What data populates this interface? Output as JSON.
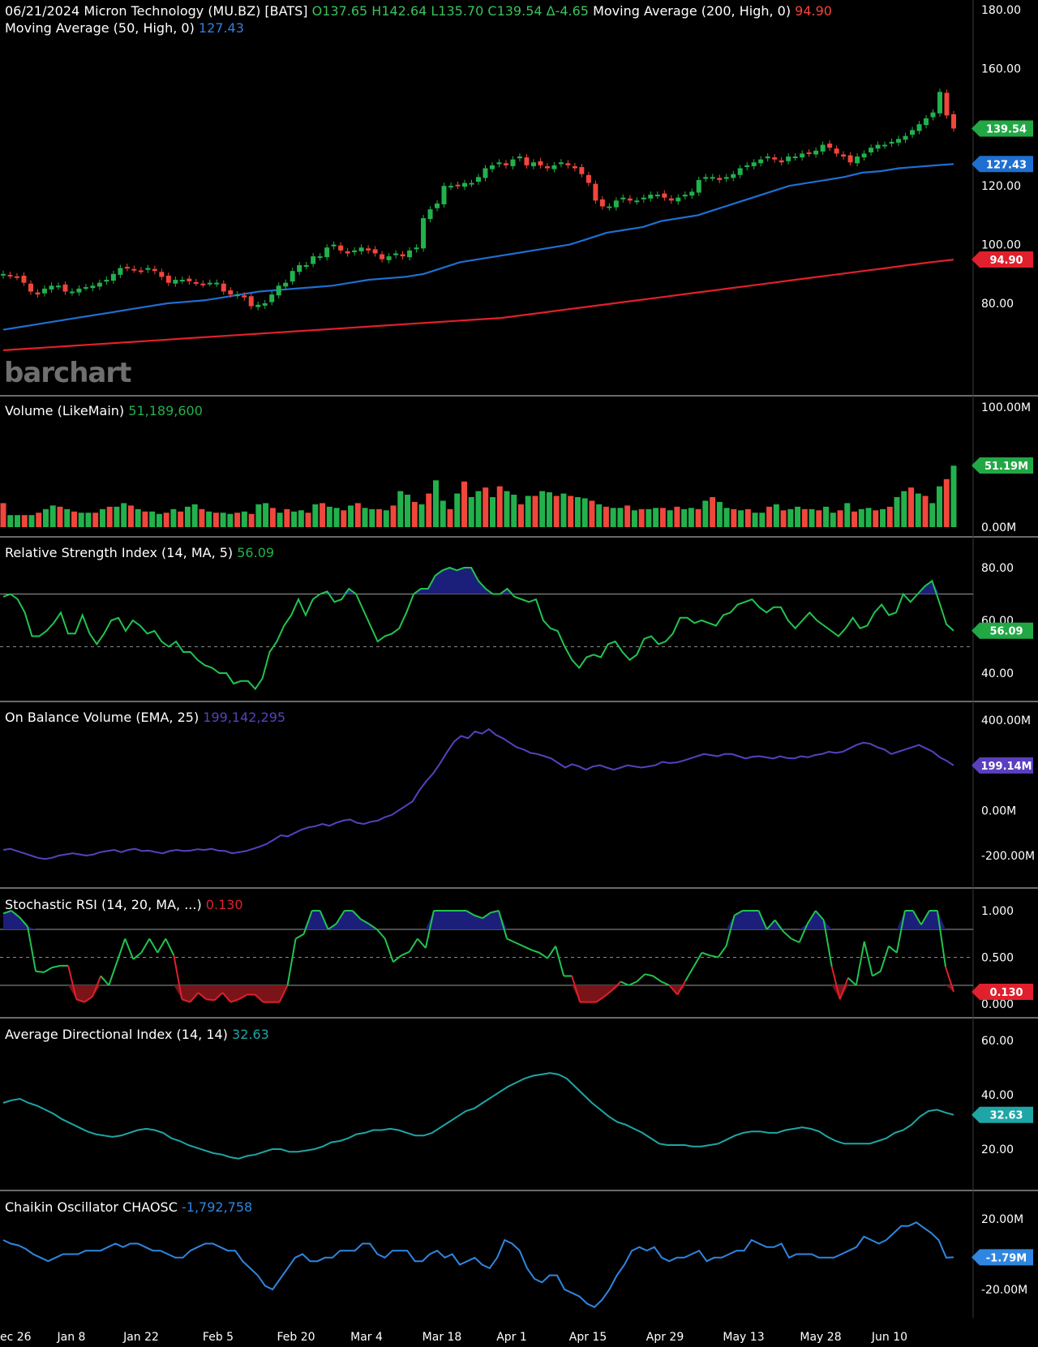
{
  "header": {
    "date": "06/21/2024",
    "symbol": "Micron Technology (MU.BZ) [BATS]",
    "ohlc": {
      "o": "O137.65",
      "h": "H142.64",
      "l": "L135.70",
      "c": "C139.54",
      "chg": "Δ-4.65"
    },
    "ma200_label": "Moving Average  (200, High, 0)",
    "ma200_value": "94.90",
    "ma50_label": "Moving Average  (50, High, 0)",
    "ma50_value": "127.43"
  },
  "watermark": "barchart",
  "colors": {
    "up": "#22b14c",
    "down": "#f0463c",
    "ma50": "#1f6fd1",
    "ma200": "#e0202c",
    "rsi": "#21c44f",
    "obv": "#5a3fc0",
    "adx": "#1ea6a6",
    "chaikin": "#2f86e0",
    "fill_ob": "#1c1f7a",
    "fill_os": "#7a1418"
  },
  "x_axis": [
    "ec 26",
    "Jan 8",
    "Jan 22",
    "Feb 5",
    "Feb 20",
    "Mar 4",
    "Mar 18",
    "Apr 1",
    "Apr 15",
    "Apr 29",
    "May 13",
    "May 28",
    "Jun 10"
  ],
  "panels": {
    "price": {
      "ticks": [
        "180.00",
        "160.00",
        "120.00",
        "100.00",
        "80.00"
      ],
      "badges": [
        "139.54",
        "127.43",
        "94.90"
      ]
    },
    "volume": {
      "title": "Volume  (LikeMain)",
      "value": "51,189,600",
      "ticks": [
        "100.00M",
        "0.00M"
      ],
      "badge": "51.19M"
    },
    "rsi": {
      "title": "Relative Strength Index  (14, MA, 5)",
      "value": "56.09",
      "ticks": [
        "80.00",
        "60.00",
        "40.00"
      ],
      "badge": "56.09"
    },
    "obv": {
      "title": "On Balance Volume  (EMA, 25)",
      "value": "199,142,295",
      "ticks": [
        "400.00M",
        "0.00M",
        "-200.00M"
      ],
      "badge": "199.14M"
    },
    "stoch": {
      "title": "Stochastic RSI  (14, 20, MA, ...)",
      "value": "0.130",
      "ticks": [
        "1.000",
        "0.500",
        "0.000"
      ],
      "badge": "0.130"
    },
    "adx": {
      "title": "Average Directional Index  (14, 14)",
      "value": "32.63",
      "ticks": [
        "60.00",
        "40.00",
        "20.00"
      ],
      "badge": "32.63"
    },
    "chaikin": {
      "title": "Chaikin Oscillator CHAOSC",
      "value": "-1,792,758",
      "ticks": [
        "20.00M",
        "-20.00M"
      ],
      "badge": "-1.79M"
    }
  },
  "chart_data": [
    {
      "type": "candlestick",
      "title": "06/21/2024 Micron Technology (MU.BZ) [BATS]",
      "x_labels": [
        "ec 26",
        "Jan 8",
        "Jan 22",
        "Feb 5",
        "Feb 20",
        "Mar 4",
        "Mar 18",
        "Apr 1",
        "Apr 15",
        "Apr 29",
        "May 13",
        "May 28",
        "Jun 10"
      ],
      "ylim": [
        60,
        180
      ],
      "close": [
        90,
        89.5,
        89,
        87,
        84,
        83,
        85,
        86,
        86,
        84,
        84,
        85,
        85.5,
        86,
        87,
        88,
        90,
        92,
        92,
        91.5,
        91,
        92,
        91,
        89,
        87,
        88,
        88,
        87.5,
        87,
        86.5,
        87,
        87,
        84,
        83,
        83,
        82,
        79,
        79.5,
        80,
        83,
        86,
        87,
        91,
        93,
        93,
        96,
        96,
        99,
        100,
        98,
        97,
        98,
        99,
        98,
        97,
        95,
        96,
        97,
        96,
        98,
        99,
        109,
        112,
        114,
        120,
        120,
        120,
        121,
        121,
        123,
        126,
        127,
        128,
        127,
        129,
        130,
        127,
        128,
        127,
        126,
        127,
        128,
        127,
        126,
        124,
        121,
        115,
        113,
        113,
        115,
        116,
        115,
        115,
        116,
        117,
        117,
        116,
        115,
        116,
        117,
        118,
        122,
        123,
        123,
        122,
        123,
        124,
        126,
        127,
        128,
        129,
        130,
        129,
        128,
        130,
        130,
        131,
        131,
        132,
        134,
        133,
        131,
        130,
        128,
        130,
        131,
        133,
        134,
        134,
        135,
        136,
        137,
        139,
        141,
        143,
        145,
        152,
        144,
        139.54
      ],
      "ma50": [
        71,
        72,
        73,
        74,
        75,
        76,
        77,
        78,
        79,
        80,
        80.5,
        81,
        82,
        83,
        84,
        84.5,
        85,
        85.5,
        86,
        87,
        88,
        88.5,
        89,
        90,
        92,
        94,
        95,
        96,
        97,
        98,
        99,
        100,
        102,
        104,
        105,
        106,
        108,
        109,
        110,
        112,
        114,
        116,
        118,
        120,
        121,
        122,
        123,
        124.5,
        125,
        126,
        126.5,
        127,
        127.43
      ],
      "ma200": [
        64,
        64.5,
        65,
        65.5,
        66,
        66.5,
        67,
        67.5,
        68,
        68.5,
        69,
        69.5,
        70,
        70.5,
        71,
        71.5,
        72,
        72.5,
        73,
        73.5,
        74,
        74.5,
        75,
        76,
        77,
        78,
        79,
        80,
        81,
        82,
        83,
        84,
        85,
        86,
        87,
        88,
        89,
        90,
        91,
        92,
        93,
        94,
        94.9
      ]
    },
    {
      "type": "bar",
      "title": "Volume  (LikeMain)",
      "ylim": [
        0,
        100
      ],
      "unit": "M",
      "values": [
        20,
        10,
        10,
        10,
        10,
        12,
        15,
        18,
        17,
        15,
        13,
        12,
        12,
        12,
        15,
        17,
        17,
        20,
        18,
        15,
        13,
        13,
        11,
        12,
        15,
        13,
        17,
        19,
        15,
        13,
        12,
        12,
        11,
        12,
        13,
        11,
        19,
        20,
        16,
        12,
        15,
        13,
        14,
        12,
        19,
        20,
        17,
        16,
        14,
        18,
        20,
        16,
        15,
        15,
        14,
        18,
        30,
        27,
        21,
        19,
        28,
        39,
        22,
        15,
        28,
        38,
        25,
        30,
        33,
        25,
        34,
        30,
        27,
        19,
        26,
        26,
        30,
        29,
        26,
        28,
        26,
        25,
        24,
        22,
        19,
        17,
        16,
        16,
        18,
        14,
        15,
        15,
        16,
        16,
        14,
        17,
        15,
        16,
        15,
        22,
        25,
        21,
        16,
        15,
        14,
        15,
        12,
        12,
        17,
        19,
        14,
        15,
        17,
        15,
        15,
        14,
        17,
        12,
        14,
        20,
        13,
        15,
        16,
        14,
        15,
        17,
        25,
        30,
        33,
        28,
        26,
        20,
        34,
        40,
        51.19
      ],
      "colors": "up/down per candle"
    },
    {
      "type": "line",
      "title": "Relative Strength Index  (14, MA, 5)",
      "ylim": [
        30,
        90
      ],
      "values": [
        69,
        70,
        68,
        63,
        54,
        54,
        56,
        59,
        63,
        55,
        55,
        62,
        55,
        51,
        55,
        60,
        61,
        56,
        60,
        58,
        55,
        56,
        52,
        50,
        52,
        48,
        48,
        45,
        43,
        42,
        40,
        40,
        36,
        37,
        37,
        34,
        38,
        48,
        52,
        58,
        62,
        68,
        62,
        68,
        70,
        71,
        67,
        68,
        72,
        70,
        64,
        58,
        52,
        54,
        55,
        57,
        63,
        70,
        72,
        72,
        77,
        79,
        80,
        79,
        80,
        80,
        75,
        72,
        70,
        70,
        72,
        69,
        68,
        67,
        68,
        60,
        57,
        56,
        50,
        45,
        42,
        46,
        47,
        46,
        51,
        52,
        48,
        45,
        47,
        53,
        54,
        51,
        52,
        55,
        61,
        61,
        59,
        60,
        59,
        58,
        62,
        63,
        66,
        67,
        68,
        65,
        63,
        65,
        65,
        60,
        57,
        60,
        63,
        60,
        58,
        56,
        54,
        57,
        61,
        57,
        58,
        63,
        66,
        62,
        63,
        70,
        67,
        70,
        73,
        75,
        67,
        58.5,
        56.09
      ]
    },
    {
      "type": "line",
      "title": "On Balance Volume  (EMA, 25)",
      "ylim": [
        -200,
        400
      ],
      "unit": "M",
      "values": [
        -175,
        -170,
        -180,
        -190,
        -200,
        -210,
        -215,
        -210,
        -200,
        -195,
        -190,
        -195,
        -200,
        -195,
        -185,
        -180,
        -175,
        -185,
        -175,
        -170,
        -180,
        -178,
        -185,
        -190,
        -180,
        -175,
        -180,
        -178,
        -172,
        -175,
        -170,
        -178,
        -180,
        -190,
        -185,
        -180,
        -170,
        -160,
        -148,
        -130,
        -110,
        -115,
        -100,
        -85,
        -75,
        -70,
        -60,
        -68,
        -55,
        -45,
        -40,
        -55,
        -60,
        -50,
        -45,
        -30,
        -20,
        0,
        20,
        40,
        90,
        130,
        165,
        210,
        260,
        305,
        330,
        320,
        350,
        340,
        360,
        335,
        320,
        300,
        280,
        270,
        255,
        250,
        240,
        230,
        210,
        190,
        205,
        195,
        180,
        195,
        200,
        190,
        180,
        190,
        200,
        195,
        190,
        195,
        200,
        215,
        210,
        212,
        220,
        230,
        240,
        250,
        245,
        240,
        250,
        250,
        240,
        230,
        238,
        240,
        235,
        230,
        240,
        232,
        230,
        240,
        235,
        245,
        250,
        260,
        255,
        260,
        275,
        290,
        300,
        295,
        280,
        270,
        250,
        260,
        270,
        280,
        290,
        275,
        260,
        235,
        220,
        199.14
      ]
    },
    {
      "type": "line",
      "title": "Stochastic RSI  (14, 20, MA, ...)",
      "ylim": [
        0,
        1.05
      ],
      "values": [
        0.97,
        1.0,
        0.93,
        0.83,
        0.35,
        0.34,
        0.39,
        0.41,
        0.41,
        0.05,
        0.02,
        0.08,
        0.3,
        0.2,
        0.45,
        0.7,
        0.48,
        0.55,
        0.7,
        0.55,
        0.7,
        0.52,
        0.05,
        0.02,
        0.12,
        0.05,
        0.04,
        0.12,
        0.02,
        0.05,
        0.1,
        0.1,
        0.02,
        0.02,
        0.02,
        0.2,
        0.7,
        0.75,
        1.0,
        1.0,
        0.8,
        0.86,
        1.0,
        1.0,
        0.91,
        0.86,
        0.8,
        0.7,
        0.45,
        0.52,
        0.56,
        0.7,
        0.6,
        1.0,
        1.0,
        1.0,
        1.0,
        1.0,
        0.95,
        0.92,
        0.98,
        1.0,
        0.7,
        0.66,
        0.62,
        0.58,
        0.55,
        0.49,
        0.62,
        0.3,
        0.3,
        0.02,
        0.02,
        0.02,
        0.08,
        0.15,
        0.24,
        0.2,
        0.24,
        0.32,
        0.3,
        0.24,
        0.2,
        0.1,
        0.25,
        0.4,
        0.55,
        0.52,
        0.5,
        0.62,
        0.95,
        1.0,
        1.0,
        1.0,
        0.8,
        0.9,
        0.78,
        0.7,
        0.66,
        0.86,
        1.0,
        0.9,
        0.4,
        0.05,
        0.28,
        0.2,
        0.67,
        0.3,
        0.35,
        0.62,
        0.55,
        1.0,
        1.0,
        0.85,
        1.0,
        1.0,
        0.4,
        0.13
      ]
    },
    {
      "type": "line",
      "title": "Average Directional Index  (14, 14)",
      "ylim": [
        10,
        60
      ],
      "values": [
        37,
        38,
        38.5,
        37,
        36,
        34.5,
        33,
        31,
        29.5,
        28,
        26.5,
        25.5,
        25,
        24.5,
        25,
        26,
        27,
        27.5,
        27,
        26,
        24,
        23,
        21.5,
        20.5,
        19.5,
        18.5,
        18,
        17,
        16.5,
        17.5,
        18,
        19,
        20,
        20,
        19,
        19,
        19.5,
        20,
        21,
        22.5,
        23,
        24,
        25.5,
        26,
        27,
        27,
        27.5,
        27,
        26,
        25,
        25,
        26,
        28,
        30,
        32,
        34,
        35,
        37,
        39,
        41,
        43,
        44.5,
        46,
        47,
        47.5,
        48,
        47.5,
        46,
        43,
        40,
        37,
        34.5,
        32,
        30,
        29,
        27.5,
        26,
        24,
        22,
        21.5,
        21.5,
        21.5,
        21,
        21,
        21.5,
        22,
        23.5,
        25,
        26,
        26.5,
        26.5,
        26,
        26,
        27,
        27.5,
        28,
        27.5,
        26.5,
        24.5,
        23,
        22,
        22,
        22,
        22,
        23,
        24,
        26,
        27,
        29,
        32,
        34,
        34.5,
        33.5,
        32.63
      ]
    },
    {
      "type": "line",
      "title": "Chaikin Oscillator CHAOSC",
      "ylim": [
        -25,
        25
      ],
      "unit": "M",
      "values": [
        8,
        6,
        5,
        3,
        0,
        -2,
        -4,
        -2,
        0,
        0,
        0,
        2,
        2,
        2,
        4,
        6,
        4,
        6,
        6,
        4,
        2,
        2,
        0,
        -2,
        -2,
        2,
        4,
        6,
        6,
        4,
        2,
        2,
        -4,
        -8,
        -12,
        -18,
        -20,
        -14,
        -8,
        -2,
        0,
        -4,
        -4,
        -2,
        -2,
        2,
        2,
        2,
        6,
        6,
        0,
        -2,
        2,
        2,
        2,
        -4,
        -4,
        0,
        2,
        -2,
        0,
        -6,
        -4,
        -2,
        -6,
        -8,
        -2,
        8,
        6,
        2,
        -8,
        -14,
        -16,
        -12,
        -12,
        -20,
        -22,
        -24,
        -28,
        -30,
        -26,
        -20,
        -12,
        -6,
        2,
        4,
        2,
        4,
        -2,
        -4,
        -2,
        -2,
        0,
        2,
        -4,
        -2,
        -2,
        0,
        2,
        2,
        8,
        6,
        4,
        4,
        6,
        -2,
        0,
        0,
        0,
        -2,
        -2,
        -2,
        0,
        2,
        4,
        10,
        8,
        6,
        8,
        12,
        16,
        16,
        18,
        15,
        12,
        8,
        -2,
        -1.79
      ]
    }
  ]
}
